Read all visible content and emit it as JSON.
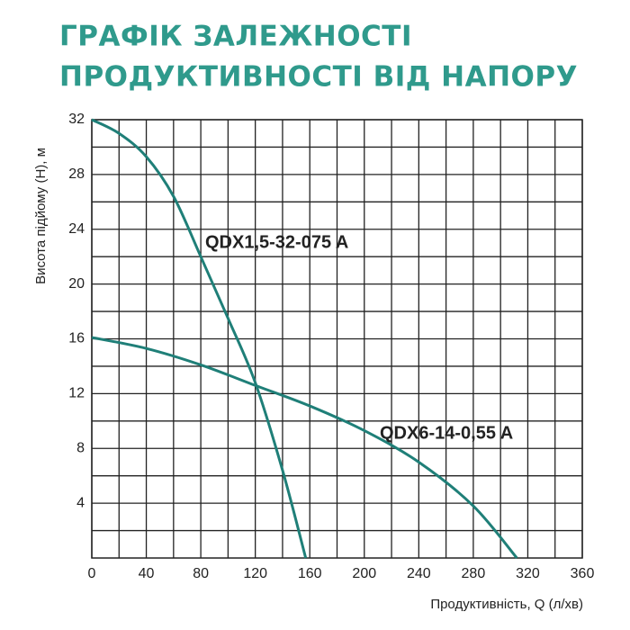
{
  "chart_data": {
    "type": "line",
    "title": [
      "ГРАФІК ЗАЛЕЖНОСТІ",
      "ПРОДУКТИВНОСТІ ВІД НАПОРУ"
    ],
    "x_label": "Продуктивність, Q (л/хв)",
    "y_label": "Висота підйому (Н), м",
    "xlim": [
      0,
      360
    ],
    "ylim": [
      0,
      32
    ],
    "xticks": [
      0,
      40,
      80,
      120,
      160,
      200,
      240,
      280,
      320,
      360
    ],
    "yticks": [
      4,
      8,
      12,
      16,
      20,
      24,
      28,
      32
    ],
    "minor_xticks": [
      20,
      60,
      100,
      140,
      180,
      220,
      260,
      300,
      340
    ],
    "minor_yticks": [
      2,
      6,
      10,
      14,
      18,
      22,
      26,
      30
    ],
    "grid": true,
    "series": [
      {
        "name": "QDX1,5-32-075 A",
        "color": "#1f7f78",
        "x": [
          0,
          20,
          40,
          60,
          80,
          100,
          120,
          140,
          157
        ],
        "values": [
          32,
          31,
          29.3,
          26.4,
          22,
          17.5,
          12.8,
          6.4,
          0
        ]
      },
      {
        "name": "QDX6-14-0,55 A",
        "color": "#1f7f78",
        "x": [
          0,
          40,
          80,
          120,
          160,
          200,
          240,
          280,
          312
        ],
        "values": [
          16.1,
          15.3,
          14.1,
          12.6,
          11.1,
          9.3,
          7.0,
          3.8,
          0
        ]
      }
    ]
  }
}
